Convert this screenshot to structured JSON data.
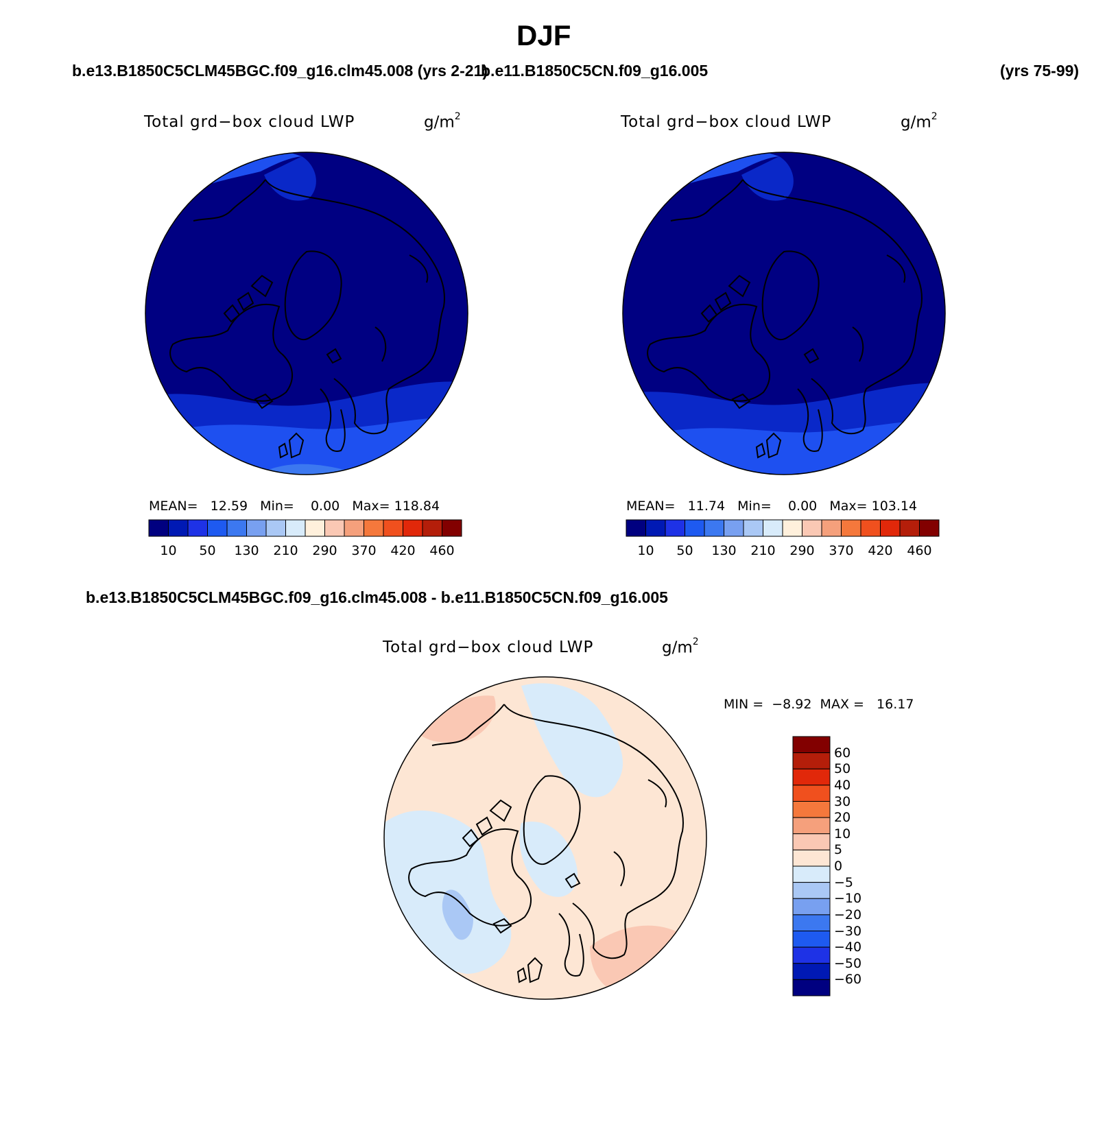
{
  "season": "DJF",
  "case_test": "b.e13.B1850C5CLM45BGC.f09_g16.clm45.008 (yrs 2-21)",
  "case_ctrl": "b.e11.B1850C5CN.f09_g16.005",
  "case_ctrl_years": "(yrs 75-99)",
  "diff_title": "b.e13.B1850C5CLM45BGC.f09_g16.clm45.008 - b.e11.B1850C5CN.f09_g16.005",
  "variable": "Total grd−box cloud LWP",
  "units_base": "g/m",
  "units_exp": "2",
  "panels": [
    {
      "id": "test",
      "stats": "MEAN=   12.59   Min=    0.00   Max= 118.84",
      "mean": 12.59,
      "min": 0.0,
      "max": 118.84
    },
    {
      "id": "ctrl",
      "stats": "MEAN=   11.74   Min=    0.00   Max= 103.14",
      "mean": 11.74,
      "min": 0.0,
      "max": 103.14
    }
  ],
  "diff_stats": "MIN =  −8.92  MAX =   16.17",
  "diff_min": -8.92,
  "diff_max": 16.17,
  "abs_colorbar": {
    "colors": [
      "#000080",
      "#0019b4",
      "#1e32e6",
      "#1e5af0",
      "#3c78f0",
      "#78a0f0",
      "#aac8f5",
      "#d8ebfa",
      "#fff0dc",
      "#fac8b4",
      "#f5a07c",
      "#f5783c",
      "#f0501e",
      "#e1280a",
      "#b41e0a",
      "#820000"
    ],
    "labels": [
      "10",
      "50",
      "130",
      "210",
      "290",
      "370",
      "420",
      "460"
    ]
  },
  "diff_colorbar": {
    "colors": [
      "#820000",
      "#b41e0a",
      "#e1280a",
      "#f0501e",
      "#f5783c",
      "#f5a07c",
      "#fac8b4",
      "#fde6d4",
      "#d8ebfa",
      "#aac8f5",
      "#78a0f0",
      "#3c78f0",
      "#1e5af0",
      "#1e32e6",
      "#0019b4",
      "#000080"
    ],
    "labels": [
      "60",
      "50",
      "40",
      "30",
      "20",
      "10",
      "5",
      "0",
      "−5",
      "−10",
      "−20",
      "−30",
      "−40",
      "−50",
      "−60"
    ]
  },
  "map_colors": {
    "deep": "#000082",
    "mid": "#0a28c8",
    "light": "#1e50f0",
    "lighter": "#3c78f0",
    "pos_light": "#fde6d4",
    "pos_mid": "#fac8b4",
    "neg_light": "#d8ebfa",
    "neg_mid": "#aac8f5"
  }
}
